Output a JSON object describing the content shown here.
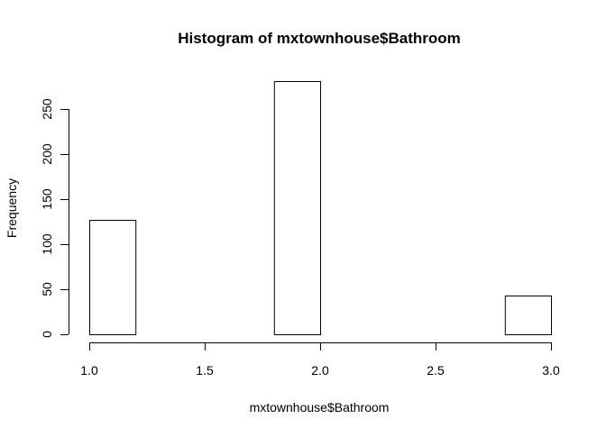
{
  "chart_data": {
    "type": "bar",
    "title": "Histogram of mxtownhouse$Bathroom",
    "xlabel": "mxtownhouse$Bathroom",
    "ylabel": "Frequency",
    "bins": [
      {
        "start": 1.0,
        "end": 1.2,
        "count": 127
      },
      {
        "start": 1.2,
        "end": 1.4,
        "count": 0
      },
      {
        "start": 1.4,
        "end": 1.6,
        "count": 0
      },
      {
        "start": 1.6,
        "end": 1.8,
        "count": 0
      },
      {
        "start": 1.8,
        "end": 2.0,
        "count": 281
      },
      {
        "start": 2.0,
        "end": 2.2,
        "count": 0
      },
      {
        "start": 2.2,
        "end": 2.4,
        "count": 0
      },
      {
        "start": 2.4,
        "end": 2.6,
        "count": 0
      },
      {
        "start": 2.6,
        "end": 2.8,
        "count": 0
      },
      {
        "start": 2.8,
        "end": 3.0,
        "count": 43
      }
    ],
    "x_ticks": [
      "1.0",
      "1.5",
      "2.0",
      "2.5",
      "3.0"
    ],
    "y_ticks": [
      "0",
      "50",
      "100",
      "150",
      "200",
      "250"
    ],
    "xlim": [
      1.0,
      3.0
    ],
    "ylim": [
      0,
      281
    ],
    "grid": false,
    "bar_fill": "#ffffff",
    "bar_stroke": "#000000"
  }
}
